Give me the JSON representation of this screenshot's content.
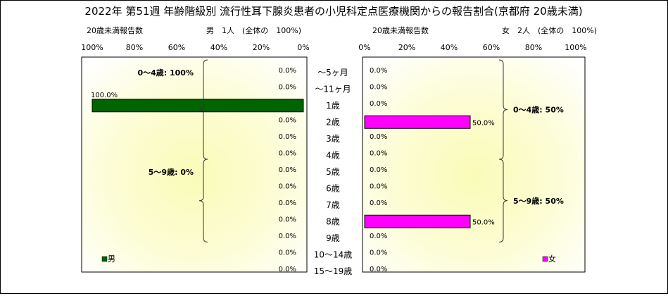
{
  "title": "2022年 第51週 年齢階級別 流行性耳下腺炎患者の小児科定点医療機関からの報告割合(京都府 20歳未満)",
  "chart_data": {
    "type": "bar",
    "categories": [
      "～5ヶ月",
      "～11ヶ月",
      "1歳",
      "2歳",
      "3歳",
      "4歳",
      "5歳",
      "6歳",
      "7歳",
      "8歳",
      "9歳",
      "10～14歳",
      "15～19歳"
    ],
    "series": [
      {
        "name": "男",
        "values": [
          0.0,
          0.0,
          100.0,
          0.0,
          0.0,
          0.0,
          0.0,
          0.0,
          0.0,
          0.0,
          0.0,
          0.0,
          0.0
        ],
        "labels": [
          "0.0%",
          "0.0%",
          "100.0%",
          "0.0%",
          "0.0%",
          "0.0%",
          "0.0%",
          "0.0%",
          "0.0%",
          "0.0%",
          "0.0%",
          "0.0%",
          "0.0%"
        ],
        "color": "#006400"
      },
      {
        "name": "女",
        "values": [
          0.0,
          0.0,
          0.0,
          50.0,
          0.0,
          0.0,
          0.0,
          0.0,
          0.0,
          50.0,
          0.0,
          0.0,
          0.0
        ],
        "labels": [
          "0.0%",
          "0.0%",
          "0.0%",
          "50.0%",
          "0.0%",
          "0.0%",
          "0.0%",
          "0.0%",
          "0.0%",
          "50.0%",
          "0.0%",
          "0.0%",
          "0.0%"
        ],
        "color": "#ff00ff"
      }
    ],
    "xlim": [
      0,
      100
    ],
    "male_ticks": [
      "100%",
      "80%",
      "60%",
      "40%",
      "20%",
      "0%"
    ],
    "female_ticks": [
      "0%",
      "20%",
      "40%",
      "60%",
      "80%",
      "100%"
    ],
    "male_header": {
      "subtitle": "20歳未満報告数",
      "summary": "男　1人　(全体の　100%)"
    },
    "female_header": {
      "subtitle": "20歳未満報告数",
      "summary": "女　2人　(全体の　100%)"
    },
    "male_groups": [
      {
        "label": "0～4歳: 100%",
        "from": 0,
        "to": 5
      },
      {
        "label": "5～9歳: 0%",
        "from": 6,
        "to": 10
      }
    ],
    "female_groups": [
      {
        "label": "0～4歳: 50%",
        "from": 0,
        "to": 5
      },
      {
        "label": "5～9歳: 50%",
        "from": 6,
        "to": 10
      }
    ],
    "grid": false,
    "legend": "bottom-inside"
  }
}
